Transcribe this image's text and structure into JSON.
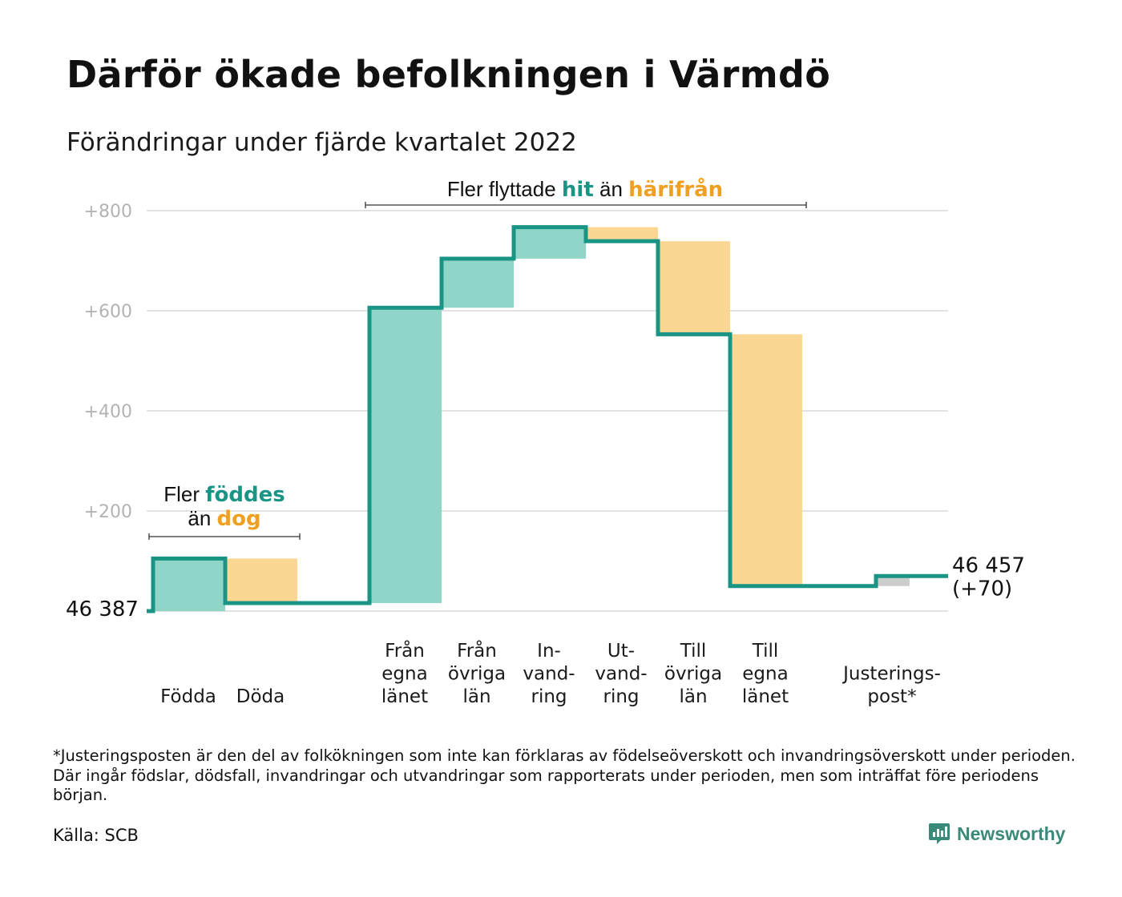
{
  "title": "Därför ökade befolkningen i Värmdö",
  "subtitle": "Förändringar under fjärde kvartalet 2022",
  "footnote": "*Justeringsposten är den del av folkökningen som inte kan förklaras av födelseöverskott och invandringsöverskott under perioden. Där ingår födslar, dödsfall, invandringar och utvandringar som rapporterats under perioden, men som inträffat före periodens början.",
  "source": "Källa: SCB",
  "brand": "Newsworthy",
  "colors": {
    "increase": "#8fd6c9",
    "decrease": "#fbd793",
    "adjustment": "#cccccc",
    "line": "#1a9484",
    "grid": "#e3e3e3",
    "accent_green": "#1a9484",
    "accent_orange": "#f0a020"
  },
  "chart_data": {
    "type": "waterfall",
    "start_value": 46387,
    "start_label": "46 387",
    "end_value": 46457,
    "end_label_line1": "46 457",
    "end_label_line2": "(+70)",
    "y_ticks": [
      {
        "value": 200,
        "label": "+200"
      },
      {
        "value": 400,
        "label": "+400"
      },
      {
        "value": 600,
        "label": "+600"
      },
      {
        "value": 800,
        "label": "+800"
      }
    ],
    "ylim": [
      0,
      800
    ],
    "steps": [
      {
        "label": [
          "Födda"
        ],
        "delta": 105,
        "kind": "increase"
      },
      {
        "label": [
          "Döda"
        ],
        "delta": -89,
        "kind": "decrease"
      },
      {
        "label": [
          "Från",
          "egna",
          "länet"
        ],
        "delta": 590,
        "kind": "increase"
      },
      {
        "label": [
          "Från",
          "övriga",
          "län"
        ],
        "delta": 98,
        "kind": "increase"
      },
      {
        "label": [
          "In-",
          "vand-",
          "ring"
        ],
        "delta": 63,
        "kind": "increase"
      },
      {
        "label": [
          "Ut-",
          "vand-",
          "ring"
        ],
        "delta": -28,
        "kind": "decrease"
      },
      {
        "label": [
          "Till",
          "övriga",
          "län"
        ],
        "delta": -186,
        "kind": "decrease"
      },
      {
        "label": [
          "Till",
          "egna",
          "länet"
        ],
        "delta": -503,
        "kind": "decrease"
      },
      {
        "label": [
          "Justerings-",
          "post*"
        ],
        "delta": 20,
        "kind": "adjustment"
      }
    ],
    "annotations": {
      "births": {
        "line1_a": "Fler ",
        "line1_b": "föddes",
        "line2_a": "än ",
        "line2_b": "dog"
      },
      "migration": {
        "a": "Fler flyttade ",
        "b": "hit",
        "c": " än ",
        "d": "härifrån"
      }
    }
  }
}
